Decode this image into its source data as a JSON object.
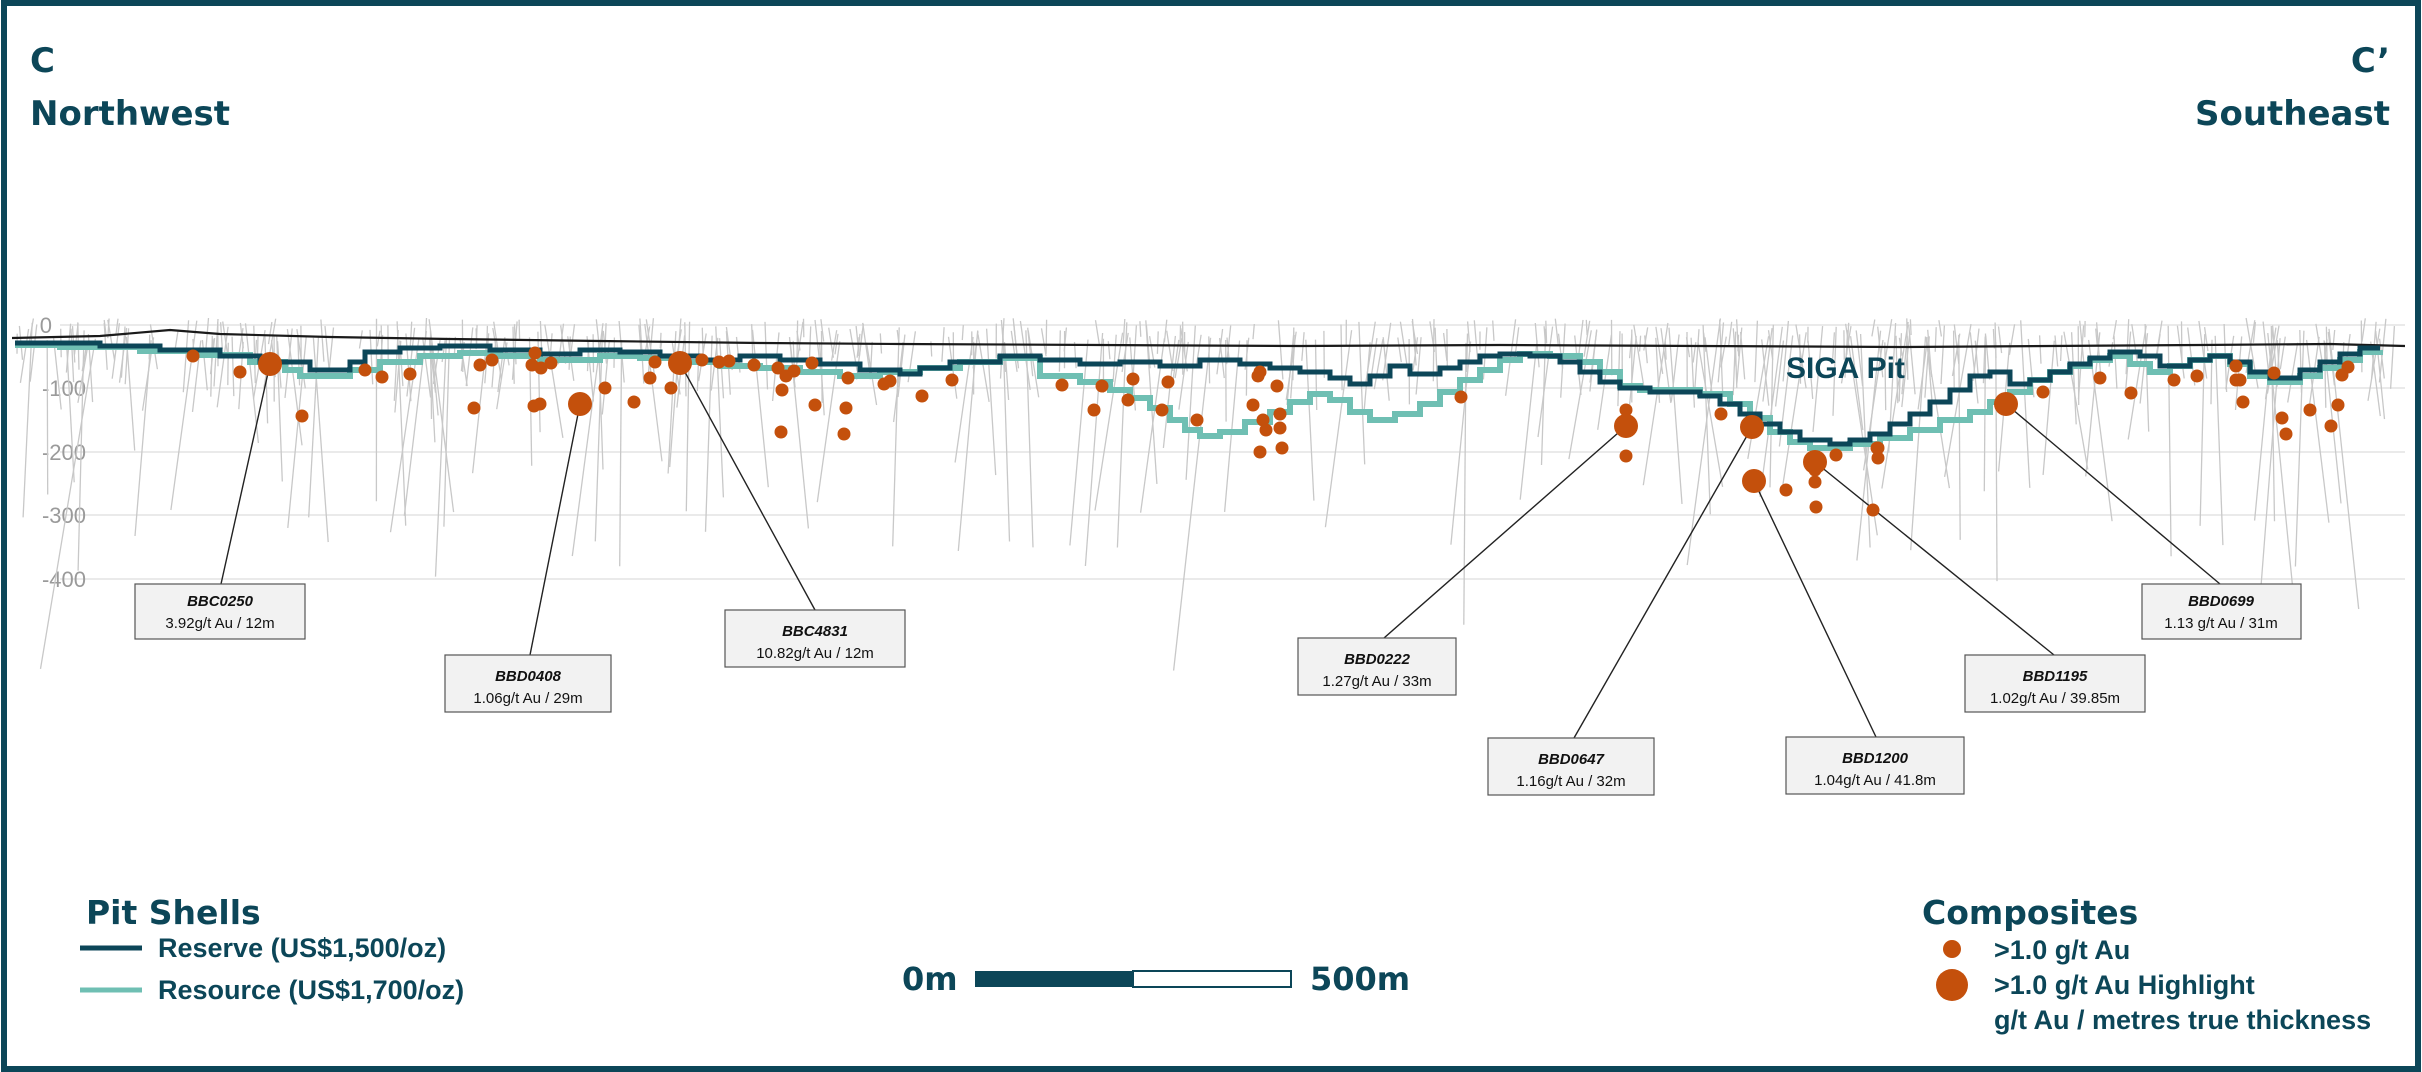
{
  "section": {
    "left_letter": "C",
    "left_direction": "Northwest",
    "right_letter": "C’",
    "right_direction": "Southeast",
    "pit_label": "SIGA Pit"
  },
  "depth_axis": {
    "ticks": [
      "0",
      "-100",
      "-200",
      "-300",
      "-400"
    ],
    "values": [
      0,
      -100,
      -200,
      -300,
      -400
    ]
  },
  "callouts": [
    {
      "hole": "BBC0250",
      "value": "3.92g/t Au / 12m"
    },
    {
      "hole": "BBD0408",
      "value": "1.06g/t Au / 29m"
    },
    {
      "hole": "BBC4831",
      "value": "10.82g/t Au / 12m"
    },
    {
      "hole": "BBD0222",
      "value": "1.27g/t Au / 33m"
    },
    {
      "hole": "BBD0647",
      "value": "1.16g/t Au / 32m"
    },
    {
      "hole": "BBD1200",
      "value": "1.04g/t Au / 41.8m"
    },
    {
      "hole": "BBD1195",
      "value": "1.02g/t Au / 39.85m"
    },
    {
      "hole": "BBD0699",
      "value": "1.13 g/t Au / 31m"
    }
  ],
  "legend_pit": {
    "title": "Pit Shells",
    "reserve": "Reserve (US$1,500/oz)",
    "resource": "Resource (US$1,700/oz)"
  },
  "legend_comp": {
    "title": "Composites",
    "small": ">1.0 g/t Au",
    "large": ">1.0 g/t Au Highlight",
    "note": "g/t Au / metres true thickness"
  },
  "scale_bar": {
    "start": "0m",
    "end": "500m"
  },
  "colors": {
    "reserve": "#0c4658",
    "resource": "#6fbfb3",
    "composite": "#c4500c",
    "drillhole": "#c8c8c8",
    "frame": "#0c4658"
  }
}
